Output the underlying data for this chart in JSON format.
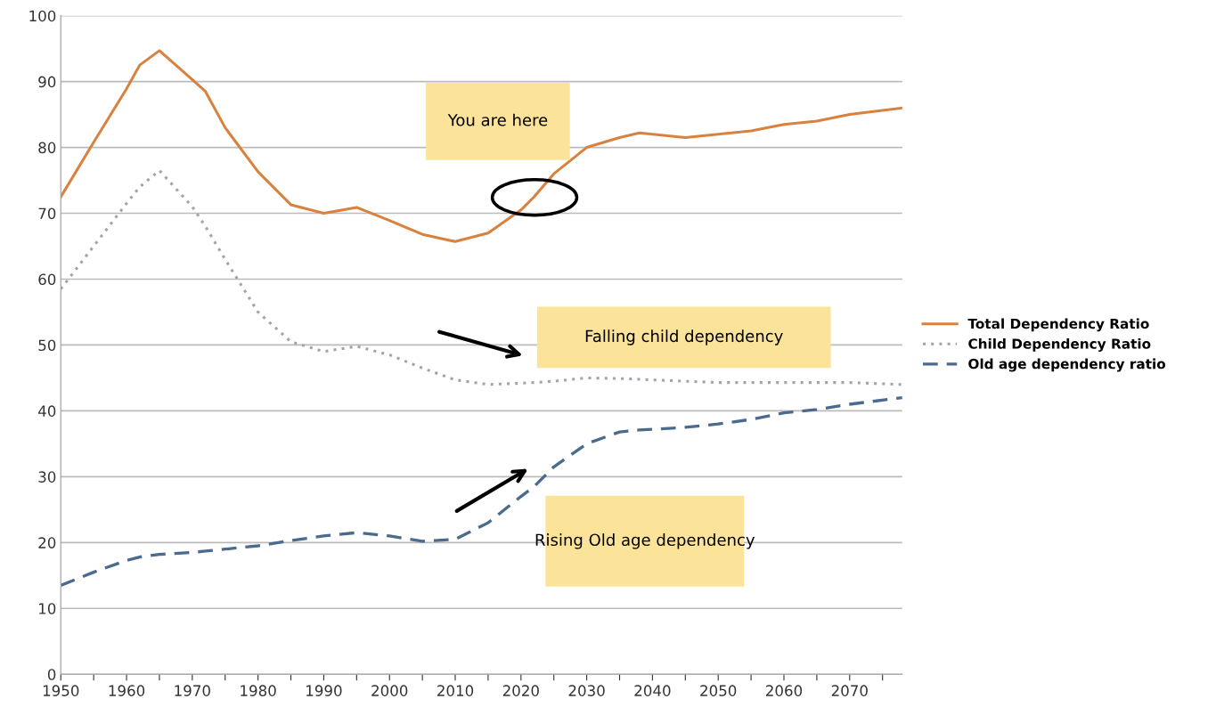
{
  "chart_data": {
    "type": "line",
    "x": [
      1950,
      1955,
      1960,
      1962,
      1965,
      1970,
      1972,
      1975,
      1980,
      1985,
      1990,
      1995,
      2000,
      2005,
      2010,
      2015,
      2020,
      2022,
      2025,
      2030,
      2035,
      2038,
      2040,
      2045,
      2050,
      2055,
      2060,
      2065,
      2070,
      2078
    ],
    "series": [
      {
        "name": "Total Dependency Ratio",
        "color": "#d9823f",
        "line_style": "solid",
        "values": [
          72.5,
          80.8,
          88.9,
          92.5,
          94.7,
          90.3,
          88.5,
          83,
          76.3,
          71.3,
          70,
          70.9,
          68.9,
          66.8,
          65.7,
          67,
          70.5,
          72.5,
          76,
          80,
          81.5,
          82.2,
          82,
          81.5,
          82,
          82.5,
          83.5,
          84,
          85,
          86
        ]
      },
      {
        "name": "Child Dependency Ratio",
        "color": "#a0a3ad",
        "line_style": "dotted",
        "values": [
          58.5,
          65,
          71.5,
          74,
          76.5,
          71,
          68,
          63,
          55,
          50.5,
          49,
          49.8,
          48.5,
          46.5,
          44.7,
          44,
          44.2,
          44.3,
          44.5,
          45,
          44.9,
          44.8,
          44.7,
          44.5,
          44.3,
          44.3,
          44.3,
          44.3,
          44.3,
          44
        ]
      },
      {
        "name": "Old age dependency ratio",
        "color": "#4a6a8e",
        "line_style": "dashed",
        "values": [
          13.5,
          15.5,
          17.3,
          17.8,
          18.2,
          18.5,
          18.7,
          19,
          19.5,
          20.3,
          21,
          21.5,
          21,
          20.2,
          20.5,
          23,
          27,
          28.5,
          31.5,
          35,
          36.8,
          37.1,
          37.2,
          37.5,
          38,
          38.7,
          39.7,
          40.2,
          41,
          42
        ]
      }
    ],
    "xlim": [
      1950,
      2078
    ],
    "xticks": [
      1950,
      {
        "value": 1955,
        "label": null
      },
      1960,
      {
        "value": 1965,
        "label": null
      },
      1970,
      {
        "value": 1975,
        "label": null
      },
      1980,
      {
        "value": 1985,
        "label": null
      },
      1990,
      {
        "value": 1995,
        "label": null
      },
      2000,
      {
        "value": 2005,
        "label": null
      },
      2010,
      {
        "value": 2015,
        "label": null
      },
      2020,
      {
        "value": 2025,
        "label": null
      },
      2030,
      {
        "value": 2035,
        "label": null
      },
      2040,
      {
        "value": 2045,
        "label": null
      },
      2050,
      {
        "value": 2055,
        "label": null
      },
      2060,
      {
        "value": 2065,
        "label": null
      },
      2070,
      {
        "value": 2075,
        "label": null
      }
    ],
    "ylim": [
      0,
      100
    ],
    "yticks": [
      0,
      10,
      20,
      30,
      40,
      50,
      60,
      70,
      80,
      90,
      100
    ],
    "grid": "y",
    "legend": "right",
    "annotations": [
      "You are here",
      "Falling child dependency",
      "Rising Old age dependency"
    ]
  }
}
